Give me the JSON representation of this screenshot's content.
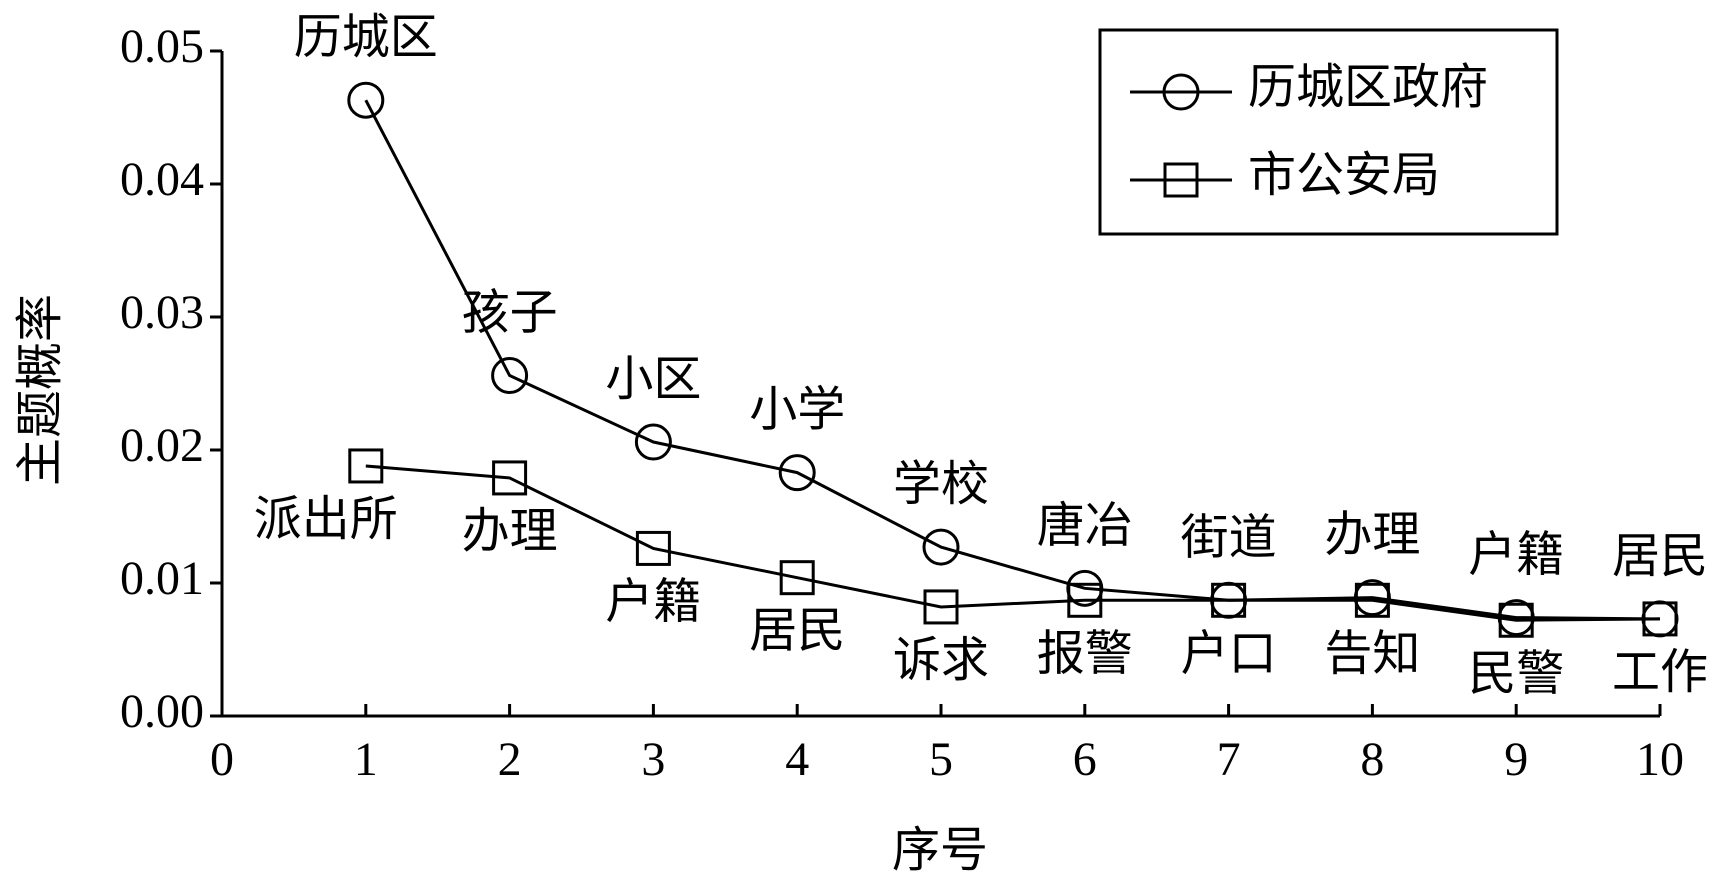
{
  "chart_data": {
    "type": "line",
    "x_label": "序号",
    "y_label": "主题概率",
    "x": [
      1,
      2,
      3,
      4,
      5,
      6,
      7,
      8,
      9,
      10
    ],
    "series": [
      {
        "name": "历城区政府",
        "color": "#000000",
        "marker": "circle",
        "values": [
          0.0463,
          0.0256,
          0.0206,
          0.0183,
          0.0127,
          0.0096,
          0.0087,
          0.0089,
          0.0074,
          0.0073
        ],
        "point_labels": [
          "历城区",
          "孩子",
          "小区",
          "小学",
          "学校",
          "唐冶",
          "街道",
          "办理",
          "户籍",
          "居民"
        ]
      },
      {
        "name": "市公安局",
        "color": "#000000",
        "marker": "square",
        "values": [
          0.0188,
          0.0179,
          0.0126,
          0.0104,
          0.0082,
          0.0087,
          0.0087,
          0.0087,
          0.0072,
          0.0073
        ],
        "point_labels": [
          "派出所",
          "办理",
          "户籍",
          "居民",
          "诉求",
          "报警",
          "户口",
          "告知",
          "民警",
          "工作"
        ]
      }
    ],
    "xlim": [
      0,
      10
    ],
    "xticks": [
      0,
      1,
      2,
      3,
      4,
      5,
      6,
      7,
      8,
      9,
      10
    ],
    "ylim": [
      0,
      0.05
    ],
    "yticks": [
      {
        "value": 0,
        "label": "0.00"
      },
      0.01,
      0.02,
      0.03,
      0.04,
      0.05
    ],
    "grid": false,
    "legend": "upper right"
  }
}
